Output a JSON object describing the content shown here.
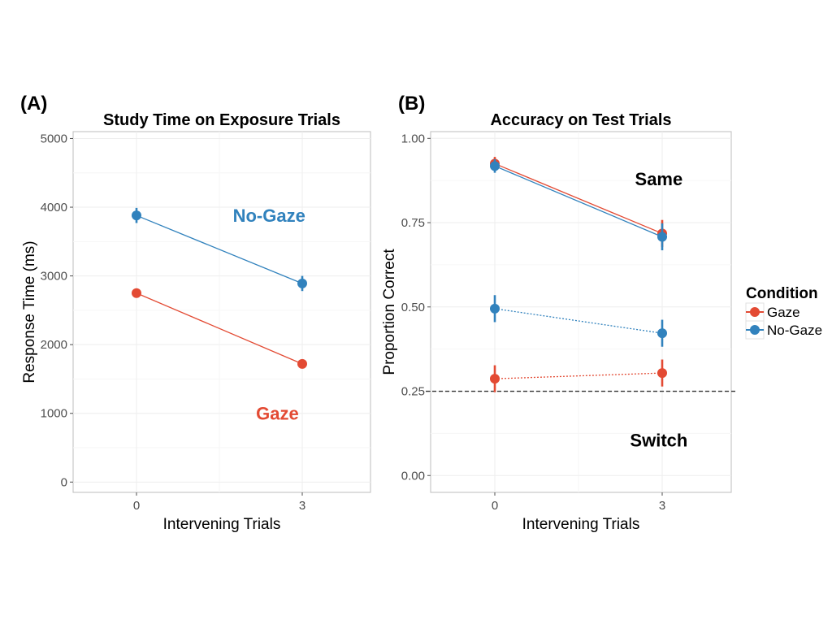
{
  "colors": {
    "gaze": "#e34a33",
    "nogaze": "#3182bd",
    "chance": "#333333"
  },
  "legend": {
    "title": "Condition",
    "items": [
      {
        "label": "Gaze",
        "color": "#e34a33"
      },
      {
        "label": "No-Gaze",
        "color": "#3182bd"
      }
    ]
  },
  "chart_data": [
    {
      "panel_tag": "(A)",
      "type": "line",
      "title": "Study Time on Exposure Trials",
      "xlabel": "Intervening Trials",
      "ylabel": "Response Time (ms)",
      "categories": [
        "0",
        "3"
      ],
      "ylim": [
        -150,
        5100
      ],
      "yticks": [
        0,
        1000,
        2000,
        3000,
        4000,
        5000
      ],
      "ytick_labels": [
        "0",
        "1000",
        "2000",
        "3000",
        "4000",
        "5000"
      ],
      "grid": true,
      "series": [
        {
          "name": "No-Gaze",
          "condition": "nogaze",
          "dashed": false,
          "values": [
            3880,
            2890
          ],
          "err": [
            110,
            110
          ]
        },
        {
          "name": "Gaze",
          "condition": "gaze",
          "dashed": false,
          "values": [
            2750,
            1720
          ],
          "err": [
            45,
            45
          ]
        }
      ],
      "annotations": [
        {
          "text": "No-Gaze",
          "condition": "nogaze",
          "x": 1.8,
          "y": 3880
        },
        {
          "text": "Gaze",
          "condition": "gaze",
          "x": 1.85,
          "y": 1000
        }
      ]
    },
    {
      "panel_tag": "(B)",
      "type": "line",
      "title": "Accuracy on Test Trials",
      "xlabel": "Intervening Trials",
      "ylabel": "Proportion Correct",
      "categories": [
        "0",
        "3"
      ],
      "ylim": [
        -0.05,
        1.02
      ],
      "yticks": [
        0,
        0.25,
        0.5,
        0.75,
        1
      ],
      "ytick_labels": [
        "0.00",
        "0.25",
        "0.50",
        "0.75",
        "1.00"
      ],
      "grid": true,
      "reference_line": {
        "y": 0.25,
        "style": "dashed"
      },
      "series": [
        {
          "name": "Gaze Same",
          "condition": "gaze",
          "dashed": false,
          "values": [
            0.925,
            0.718
          ],
          "err": [
            0.02,
            0.04
          ]
        },
        {
          "name": "No-Gaze Same",
          "condition": "nogaze",
          "dashed": false,
          "values": [
            0.918,
            0.708
          ],
          "err": [
            0.02,
            0.04
          ]
        },
        {
          "name": "No-Gaze Switch",
          "condition": "nogaze",
          "dashed": true,
          "values": [
            0.495,
            0.422
          ],
          "err": [
            0.04,
            0.04
          ]
        },
        {
          "name": "Gaze Switch",
          "condition": "gaze",
          "dashed": true,
          "values": [
            0.287,
            0.304
          ],
          "err": [
            0.04,
            0.04
          ]
        }
      ],
      "annotations": [
        {
          "text": "Same",
          "condition": "label",
          "x": 1.98,
          "y": 0.88
        },
        {
          "text": "Switch",
          "condition": "label",
          "x": 1.98,
          "y": 0.105
        }
      ]
    }
  ]
}
